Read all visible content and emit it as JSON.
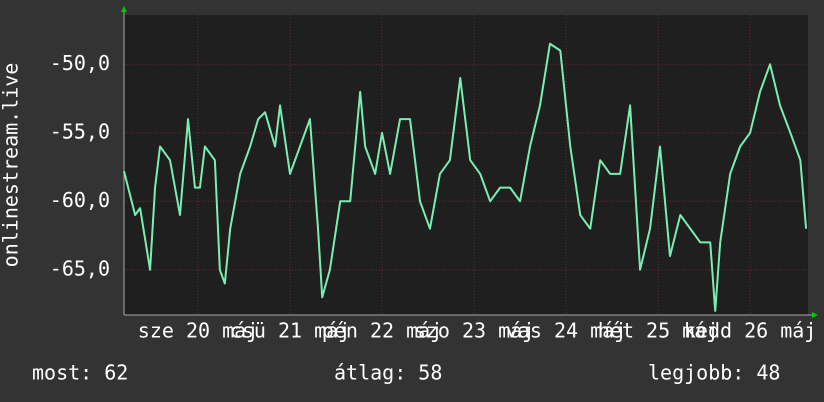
{
  "chart_data": {
    "type": "line",
    "y_label": "onlinestream.live",
    "x": [
      0,
      2.9,
      4.2,
      6.8,
      8.1,
      9.4,
      12.0,
      14.6,
      16.7,
      18.5,
      19.8,
      21.1,
      23.7,
      25.0,
      26.3,
      27.7,
      30.3,
      32.9,
      35.0,
      36.8,
      39.4,
      40.7,
      43.3,
      45.9,
      48.5,
      50.6,
      51.7,
      53.7,
      56.4,
      59.0,
      61.6,
      62.9,
      65.5,
      67.3,
      69.4,
      72.0,
      74.6,
      77.2,
      79.8,
      82.4,
      85.0,
      87.7,
      90.3,
      92.9,
      95.5,
      98.1,
      100.7,
      103.3,
      105.9,
      108.5,
      111.1,
      113.8,
      116.4,
      119.0,
      121.6,
      124.2,
      126.8,
      129.4,
      132.0,
      134.6,
      137.2,
      139.8,
      142.4,
      145.1,
      147.7,
      150.3,
      152.9,
      154.2,
      155.5,
      158.1,
      160.7,
      163.3,
      165.9,
      168.5,
      171.1,
      173.8,
      176.4,
      177.9
    ],
    "series": [
      {
        "name": "onlinestream.live",
        "color": "#7aeeb2",
        "values": [
          -57.8,
          -61,
          -60.5,
          -65,
          -59,
          -56,
          -57,
          -61,
          -54,
          -59,
          -59,
          -56,
          -57,
          -65,
          -66,
          -62,
          -58,
          -56,
          -54,
          -53.5,
          -56,
          -53,
          -58,
          -56,
          -54,
          -62,
          -67,
          -65,
          -60,
          -60,
          -52,
          -56,
          -58,
          -55,
          -58,
          -54,
          -54,
          -60,
          -62,
          -58,
          -57,
          -51,
          -57,
          -58,
          -60,
          -59,
          -59,
          -60,
          -56,
          -53,
          -48.5,
          -49,
          -56,
          -61,
          -62,
          -57,
          -58,
          -58,
          -53,
          -65,
          -62,
          -56,
          -64,
          -61,
          -62,
          -63,
          -63,
          -68,
          -63,
          -58,
          -56,
          -55,
          -52,
          -50,
          -53,
          -55,
          -57,
          -62
        ]
      }
    ],
    "xlim": [
      0,
      178.4
    ],
    "xticks": [
      {
        "value": 19.3,
        "label": "sze 20 máj"
      },
      {
        "value": 43.3,
        "label": "csü 21 máj"
      },
      {
        "value": 67.3,
        "label": "pén 22 máj"
      },
      {
        "value": 91.3,
        "label": "szo 23 máj"
      },
      {
        "value": 115.3,
        "label": "vas 24 máj"
      },
      {
        "value": 139.3,
        "label": "hét 25 máj"
      },
      {
        "value": 163.3,
        "label": "kedd 26 máj"
      }
    ],
    "ylim": [
      -68.3,
      -46.4
    ],
    "yticks": [
      {
        "value": -65,
        "label": "-65,0"
      },
      {
        "value": -60,
        "label": "-60,0"
      },
      {
        "value": -55,
        "label": "-55,0"
      },
      {
        "value": -50,
        "label": "-50,0"
      }
    ],
    "grid": true,
    "footer": [
      "most: 62",
      "átlag: 58",
      "legjobb: 48"
    ]
  }
}
